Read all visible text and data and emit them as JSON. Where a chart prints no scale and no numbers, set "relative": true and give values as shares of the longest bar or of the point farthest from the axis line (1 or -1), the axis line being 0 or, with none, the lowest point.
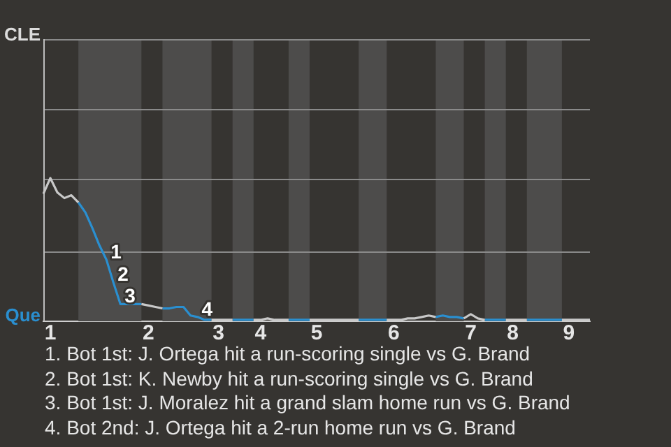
{
  "chart_data": {
    "type": "line",
    "relative": true,
    "categories": [
      null,
      "1",
      null,
      null,
      null,
      null,
      null,
      null,
      null,
      null,
      null,
      null,
      null,
      null,
      null,
      "2",
      null,
      null,
      null,
      null,
      null,
      null,
      null,
      null,
      null,
      "3",
      null,
      null,
      null,
      null,
      null,
      "4",
      null,
      null,
      null,
      null,
      null,
      null,
      null,
      "5",
      null,
      null,
      null,
      null,
      null,
      null,
      null,
      null,
      null,
      null,
      "6",
      null,
      null,
      null,
      null,
      null,
      null,
      null,
      null,
      null,
      null,
      "7",
      null,
      null,
      null,
      null,
      null,
      "8",
      null,
      null,
      null,
      null,
      null,
      null,
      null,
      "9",
      null,
      null,
      null
    ],
    "ref_lines": [
      {
        "axis": "y",
        "value": 0.49,
        "color": "#8a8a8a"
      },
      {
        "axis": "y",
        "value": 0.99,
        "color": "#8a8a8a"
      },
      {
        "axis": "y",
        "value": 1.48,
        "color": "#8a8a8a"
      },
      {
        "axis": "y",
        "value": 1.97,
        "color": "#8a8a8a"
      }
    ],
    "legend": false,
    "marker": "none",
    "series": [
      {
        "color": "#c8c8c8",
        "values": [
          0.89,
          1,
          0.9,
          0.86,
          0.88,
          0.83,
          null,
          null,
          null,
          null,
          null,
          null,
          null,
          null,
          0.12,
          0.11,
          0.1,
          0.09,
          null,
          null,
          null,
          null,
          null,
          null,
          0.01,
          0.01,
          0.01,
          0.01,
          null,
          null,
          0.01,
          0.01,
          0.02,
          0.01,
          0.01,
          0.01,
          null,
          null,
          0.01,
          0.01,
          0.01,
          0.01,
          0.01,
          0.01,
          0.01,
          0.01,
          null,
          null,
          null,
          0.01,
          0.01,
          0.01,
          0.02,
          0.02,
          0.03,
          0.04,
          0.03,
          null,
          null,
          null,
          0.02,
          0.05,
          0.02,
          0.01,
          null,
          null,
          0.01,
          0.01,
          0.01,
          0.01,
          null,
          null,
          null,
          null,
          0.01,
          0.01,
          0.01,
          0.01,
          0.01
        ]
      },
      {
        "color": "#2a8fd0",
        "values": [
          null,
          null,
          null,
          null,
          null,
          0.83,
          0.76,
          0.65,
          0.53,
          0.43,
          0.27,
          0.12,
          0.12,
          0.12,
          0.12,
          null,
          null,
          0.09,
          0.09,
          0.1,
          0.1,
          0.04,
          0.03,
          0.01,
          0.01,
          null,
          null,
          0.01,
          0.01,
          0.01,
          0.01,
          null,
          null,
          null,
          null,
          0.01,
          0.01,
          0.01,
          0.01,
          null,
          null,
          null,
          null,
          null,
          null,
          0.01,
          0.01,
          0.01,
          0.01,
          0.01,
          null,
          null,
          null,
          null,
          null,
          null,
          0.03,
          0.04,
          0.03,
          0.03,
          0.02,
          null,
          null,
          0.01,
          0.01,
          0.01,
          0.01,
          null,
          null,
          0.01,
          0.01,
          0.01,
          0.01,
          0.01,
          0.01,
          null,
          null,
          null,
          null
        ]
      }
    ],
    "annotations": [
      "CLE",
      "Que",
      "1",
      "2",
      "3",
      "4",
      "1. Bot 1st: J. Ortega hit a run-scoring single vs G. Brand",
      "2. Bot 1st: K. Newby hit a run-scoring single vs G. Brand",
      "3. Bot 1st: J. Moralez hit a grand slam home run vs G. Brand",
      "4. Bot 2nd: J. Ortega hit a 2-run home run vs G. Brand"
    ]
  }
}
